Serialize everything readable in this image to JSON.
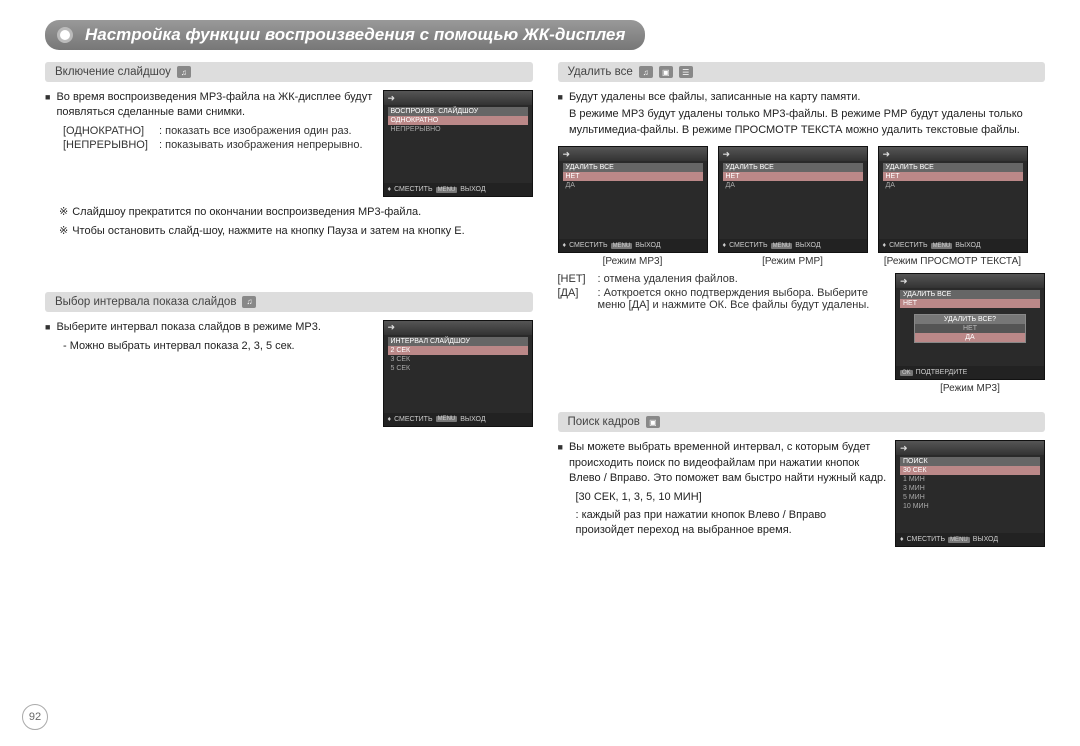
{
  "page_number": "92",
  "title": "Настройка функции воспроизведения с помощью ЖК-дисплея",
  "icons": {
    "headphone": "♫",
    "video": "▣",
    "text": "☰",
    "arrow": "➜",
    "updown": "♦"
  },
  "footer": {
    "move": "СМЕСТИТЬ",
    "menu_tag": "MENU",
    "exit": "ВЫХОД",
    "ok_tag": "OK",
    "confirm": "ПОДТВЕРДИТЕ"
  },
  "sec1": {
    "heading": "Включение слайдшоу",
    "p1": "Во время воспроизведения MP3-файла на ЖК-дисплее будут появляться сделанные вами снимки.",
    "opt1_label": "[ОДНОКРАТНО]",
    "opt1_text": ": показать все изображения один раз.",
    "opt2_label": "[НЕПРЕРЫВНО]",
    "opt2_text": ": показывать изображения непрерывно.",
    "note1": "Слайдшоу прекратится по окончании воспроизведения MP3-файла.",
    "note2": "Чтобы остановить слайд-шоу, нажмите на кнопку Пауза и затем на кнопку E.",
    "screen": {
      "title": "ВОСПРОИЗВ. СЛАЙДШОУ",
      "rows": [
        "ОДНОКРАТНО",
        "НЕПРЕРЫВНО"
      ]
    }
  },
  "sec2": {
    "heading": "Выбор интервала показа слайдов",
    "p1": "Выберите интервал показа слайдов в режиме MP3.",
    "p2": "- Можно выбрать интервал показа 2, 3, 5 сек.",
    "screen": {
      "title": "ИНТЕРВАЛ СЛАЙДШОУ",
      "rows": [
        "2 СЕК",
        "3 СЕК",
        "5 СЕК"
      ]
    }
  },
  "sec3": {
    "heading": "Удалить все",
    "p1": "Будут удалены все файлы, записанные на карту памяти.",
    "p2": "В режиме MP3 будут удалены только MP3-файлы. В режиме PMP будут удалены только мультимедиа-файлы. В режиме ПРОСМОТР ТЕКСТА можно удалить текстовые файлы.",
    "screens": [
      {
        "caption": "[Режим MP3]",
        "title": "УДАЛИТЬ ВСЕ",
        "rows": [
          "НЕТ",
          "ДА"
        ]
      },
      {
        "caption": "[Режим PMP]",
        "title": "УДАЛИТЬ ВСЕ",
        "rows": [
          "НЕТ",
          "ДА"
        ]
      },
      {
        "caption": "[Режим ПРОСМОТР ТЕКСТА]",
        "title": "УДАЛИТЬ ВСЕ",
        "rows": [
          "НЕТ",
          "ДА"
        ]
      }
    ],
    "opt_no_label": "[НЕТ]",
    "opt_no_text": ": отмена удаления файлов.",
    "opt_yes_label": "[ДА]",
    "opt_yes_text": ": Аоткроется окно подтверждения выбора. Выберите меню [ДА] и нажмите ОК. Все файлы будут удалены.",
    "confirm_screen": {
      "caption": "[Режим MP3]",
      "title": "УДАЛИТЬ ВСЕ",
      "rows": [
        "НЕТ"
      ],
      "dialog_title": "УДАЛИТЬ ВСЕ?",
      "dialog_opts": [
        "НЕТ",
        "ДА"
      ]
    }
  },
  "sec4": {
    "heading": "Поиск кадров",
    "p1": "Вы можете выбрать временной интервал, с которым будет происходить поиск по видеофайлам при нажатии кнопок Влево / Вправо. Это поможет вам быстро найти нужный кадр.",
    "opts": "[30 СЕК, 1, 3, 5, 10 МИН]",
    "p2": ": каждый раз при нажатии кнопок Влево / Вправо произойдет переход на выбранное время.",
    "screen": {
      "title": "ПОИСК",
      "rows": [
        "30 СЕК",
        "1 МИН",
        "3 МИН",
        "5 МИН",
        "10 МИН"
      ]
    }
  }
}
